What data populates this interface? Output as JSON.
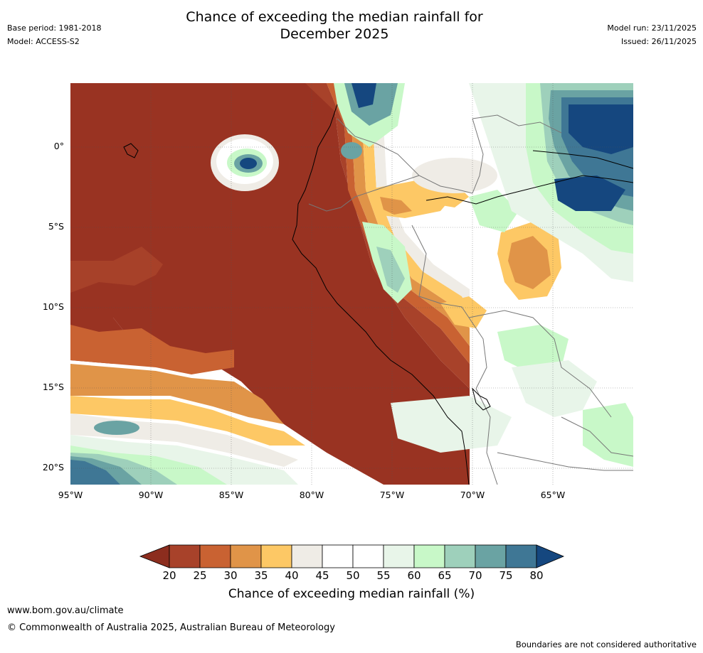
{
  "header": {
    "title_line1": "Chance of exceeding the median rainfall for",
    "title_line2": "December 2025",
    "base_period": "Base period: 1981-2018",
    "model": "Model: ACCESS-S2",
    "model_run": "Model run: 23/11/2025",
    "issued": "Issued: 26/11/2025"
  },
  "map": {
    "lat_labels": [
      "0°",
      "5°S",
      "10°S",
      "15°S",
      "20°S"
    ],
    "lon_labels": [
      "95°W",
      "90°W",
      "85°W",
      "80°W",
      "75°W",
      "70°W",
      "65°W"
    ]
  },
  "colorbar": {
    "label": "Chance of exceeding median rainfall (%)",
    "ticks": [
      "20",
      "25",
      "30",
      "35",
      "40",
      "45",
      "50",
      "55",
      "60",
      "65",
      "70",
      "75",
      "80"
    ],
    "colors": {
      "below20": "#8c2d1e",
      "c20_25": "#a8422a",
      "c25_30": "#c96232",
      "c30_35": "#e09448",
      "c35_40": "#fdc865",
      "c40_45": "#efece6",
      "c45_50": "#ffffff",
      "c50_55": "#ffffff",
      "c55_60": "#e8f5e9",
      "c60_65": "#c8f8c8",
      "c65_70": "#9ed0bb",
      "c70_75": "#6aa3a3",
      "c75_80": "#3f7795",
      "above80": "#15477f",
      "base_red": "#993322"
    }
  },
  "footer": {
    "url": "www.bom.gov.au/climate",
    "copyright": "© Commonwealth of Australia 2025, Australian Bureau of Meteorology",
    "disclaimer": "Boundaries are not considered authoritative"
  }
}
